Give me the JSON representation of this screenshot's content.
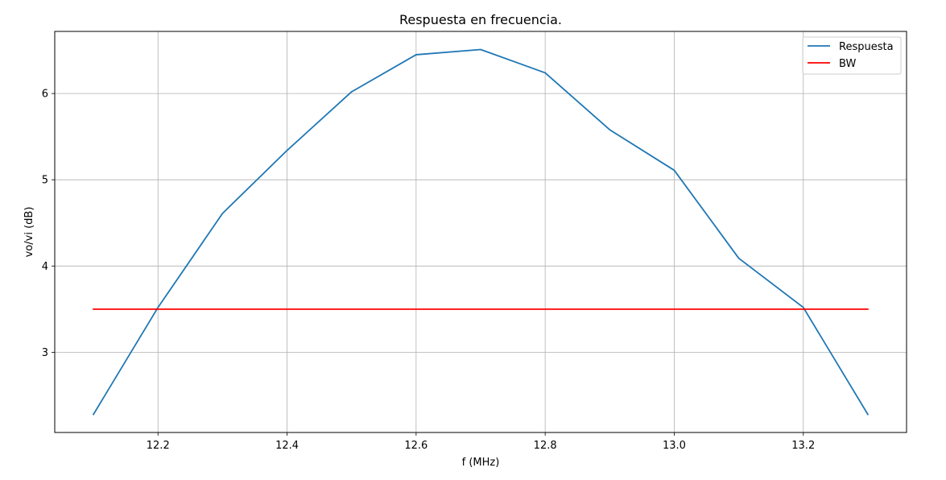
{
  "chart_data": {
    "type": "line",
    "title": "Respuesta en frecuencia.",
    "xlabel": "f (MHz)",
    "ylabel": "vo/vi (dB)",
    "xlim": [
      12.04,
      13.36
    ],
    "ylim": [
      2.07,
      6.72
    ],
    "grid": true,
    "legend_position": "top-right",
    "x_ticks": [
      12.2,
      12.4,
      12.6,
      12.8,
      13.0,
      13.2
    ],
    "x_tick_labels": [
      "12.2",
      "12.4",
      "12.6",
      "12.8",
      "13.0",
      "13.2"
    ],
    "y_ticks": [
      3,
      4,
      5,
      6
    ],
    "y_tick_labels": [
      "3",
      "4",
      "5",
      "6"
    ],
    "series": [
      {
        "name": "Respuesta",
        "color": "#1f77b4",
        "x": [
          12.1,
          12.2,
          12.3,
          12.4,
          12.5,
          12.6,
          12.7,
          12.8,
          12.9,
          13.0,
          13.1,
          13.2,
          13.3
        ],
        "y": [
          2.28,
          3.52,
          4.61,
          5.34,
          6.02,
          6.45,
          6.51,
          6.24,
          5.58,
          5.11,
          4.09,
          3.52,
          2.28
        ]
      },
      {
        "name": "BW",
        "color": "#ff0000",
        "x": [
          12.1,
          13.3
        ],
        "y": [
          3.5,
          3.5
        ]
      }
    ]
  }
}
